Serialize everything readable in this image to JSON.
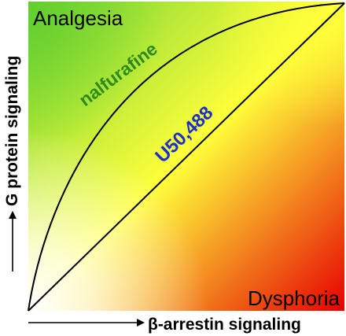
{
  "regions": {
    "top_left": "Analgesia",
    "bottom_right": "Dysphoria"
  },
  "curves": {
    "upper": "nalfurafine",
    "diagonal": "U50,488"
  },
  "axes": {
    "y_label": "G protein signaling",
    "x_label": "β-arrestin signaling"
  },
  "colors": {
    "green": "#6fd336",
    "yellow": "#ffff3a",
    "red": "#e60000",
    "white": "#ffffff",
    "nalfurafine_label": "#2f8a1d",
    "u50488_label": "#1e2ecc",
    "line": "#000000"
  }
}
